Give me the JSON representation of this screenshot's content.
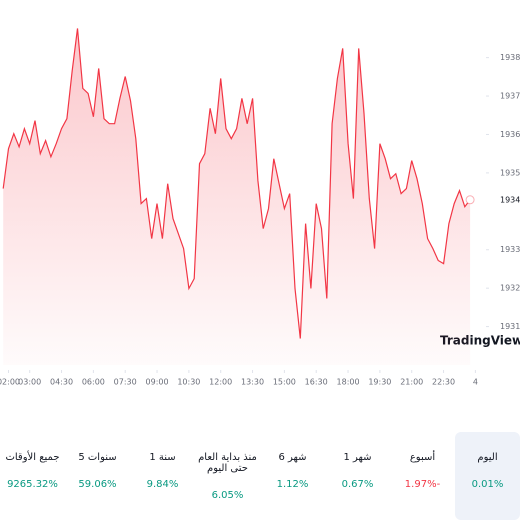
{
  "chart_data": {
    "type": "area",
    "color": "#f23645",
    "x": [
      1.75,
      2,
      2.25,
      2.5,
      2.75,
      3,
      3.25,
      3.5,
      3.75,
      4,
      4.25,
      4.5,
      4.75,
      5,
      5.25,
      5.5,
      5.75,
      6,
      6.25,
      6.5,
      6.75,
      7,
      7.25,
      7.5,
      7.75,
      8,
      8.25,
      8.5,
      8.75,
      9,
      9.25,
      9.5,
      9.75,
      10,
      10.25,
      10.5,
      10.75,
      11,
      11.25,
      11.5,
      11.75,
      12,
      12.25,
      12.5,
      12.75,
      13,
      13.25,
      13.5,
      13.75,
      14,
      14.25,
      14.5,
      14.75,
      15,
      15.25,
      15.5,
      15.75,
      16,
      16.25,
      16.5,
      16.75,
      17,
      17.25,
      17.5,
      17.75,
      18,
      18.25,
      18.5,
      18.75,
      19,
      19.25,
      19.5,
      19.75,
      20,
      20.25,
      20.5,
      20.75,
      21,
      21.25,
      21.5,
      21.75,
      22,
      22.25,
      22.5,
      22.75,
      23,
      23.25,
      23.5,
      23.75
    ],
    "values": [
      1934.59,
      1935.63,
      1936.02,
      1935.68,
      1936.15,
      1935.76,
      1936.36,
      1935.5,
      1935.84,
      1935.42,
      1935.76,
      1936.15,
      1936.41,
      1937.66,
      1938.76,
      1937.2,
      1937.07,
      1936.46,
      1937.72,
      1936.41,
      1936.28,
      1936.28,
      1936.94,
      1937.51,
      1936.88,
      1935.89,
      1934.2,
      1934.33,
      1933.29,
      1934.2,
      1933.29,
      1934.72,
      1933.81,
      1933.42,
      1933.03,
      1931.99,
      1932.25,
      1935.24,
      1935.5,
      1936.68,
      1936.02,
      1937.46,
      1936.15,
      1935.89,
      1936.15,
      1936.94,
      1936.28,
      1936.94,
      1934.8,
      1933.55,
      1934.07,
      1935.37,
      1934.72,
      1934.07,
      1934.46,
      1931.99,
      1930.69,
      1933.68,
      1931.99,
      1934.2,
      1933.55,
      1931.73,
      1936.28,
      1937.46,
      1938.24,
      1935.76,
      1934.33,
      1938.24,
      1936.55,
      1934.33,
      1933.03,
      1935.76,
      1935.37,
      1934.85,
      1934.98,
      1934.46,
      1934.59,
      1935.32,
      1934.85,
      1934.2,
      1933.29,
      1933.03,
      1932.72,
      1932.64,
      1933.68,
      1934.2,
      1934.54,
      1934.12,
      1934.3
    ],
    "last_price": {
      "value": 1934.3,
      "label": "1934.30"
    },
    "xlim": [
      1.6,
      24.5
    ],
    "ylim": [
      1930,
      1939.5
    ],
    "xticks": [
      {
        "value": 2,
        "label": "02:00"
      },
      {
        "value": 3,
        "label": "03:00"
      },
      {
        "value": 4.5,
        "label": "04:30"
      },
      {
        "value": 6,
        "label": "06:00"
      },
      {
        "value": 7.5,
        "label": "07:30"
      },
      {
        "value": 9,
        "label": "09:00"
      },
      {
        "value": 10.5,
        "label": "10:30"
      },
      {
        "value": 12,
        "label": "12:00"
      },
      {
        "value": 13.5,
        "label": "13:30"
      },
      {
        "value": 15,
        "label": "15:00"
      },
      {
        "value": 16.5,
        "label": "16:30"
      },
      {
        "value": 18,
        "label": "18:00"
      },
      {
        "value": 19.5,
        "label": "19:30"
      },
      {
        "value": 21,
        "label": "21:00"
      },
      {
        "value": 22.5,
        "label": "22:30"
      },
      {
        "value": 24,
        "label": "4"
      }
    ],
    "yticks": [
      {
        "value": 1931,
        "label": "1931.00"
      },
      {
        "value": 1932,
        "label": "1932.00"
      },
      {
        "value": 1933,
        "label": "1933.00"
      },
      {
        "value": 1935,
        "label": "1935.00"
      },
      {
        "value": 1936,
        "label": "1936.00"
      },
      {
        "value": 1937,
        "label": "1937.00"
      },
      {
        "value": 1938,
        "label": "1938.00"
      }
    ],
    "watermark": "TradingView"
  },
  "stats": [
    {
      "label": "اليوم",
      "value": "0.01%",
      "color": "#089981"
    },
    {
      "label": "أسبوع",
      "value": "1.97%-",
      "color": "#f23645"
    },
    {
      "label": "1 شهر",
      "value": "0.67%",
      "color": "#089981"
    },
    {
      "label": "6 شهر",
      "value": "1.12%",
      "color": "#089981"
    },
    {
      "label": "منذ بداية العام حتى اليوم",
      "value": "6.05%",
      "color": "#089981"
    },
    {
      "label": "1 سنة",
      "value": "9.84%",
      "color": "#089981"
    },
    {
      "label": "5 سنوات",
      "value": "59.06%",
      "color": "#089981"
    },
    {
      "label": "جميع الأوقات",
      "value": "9265.32%",
      "color": "#089981"
    }
  ]
}
